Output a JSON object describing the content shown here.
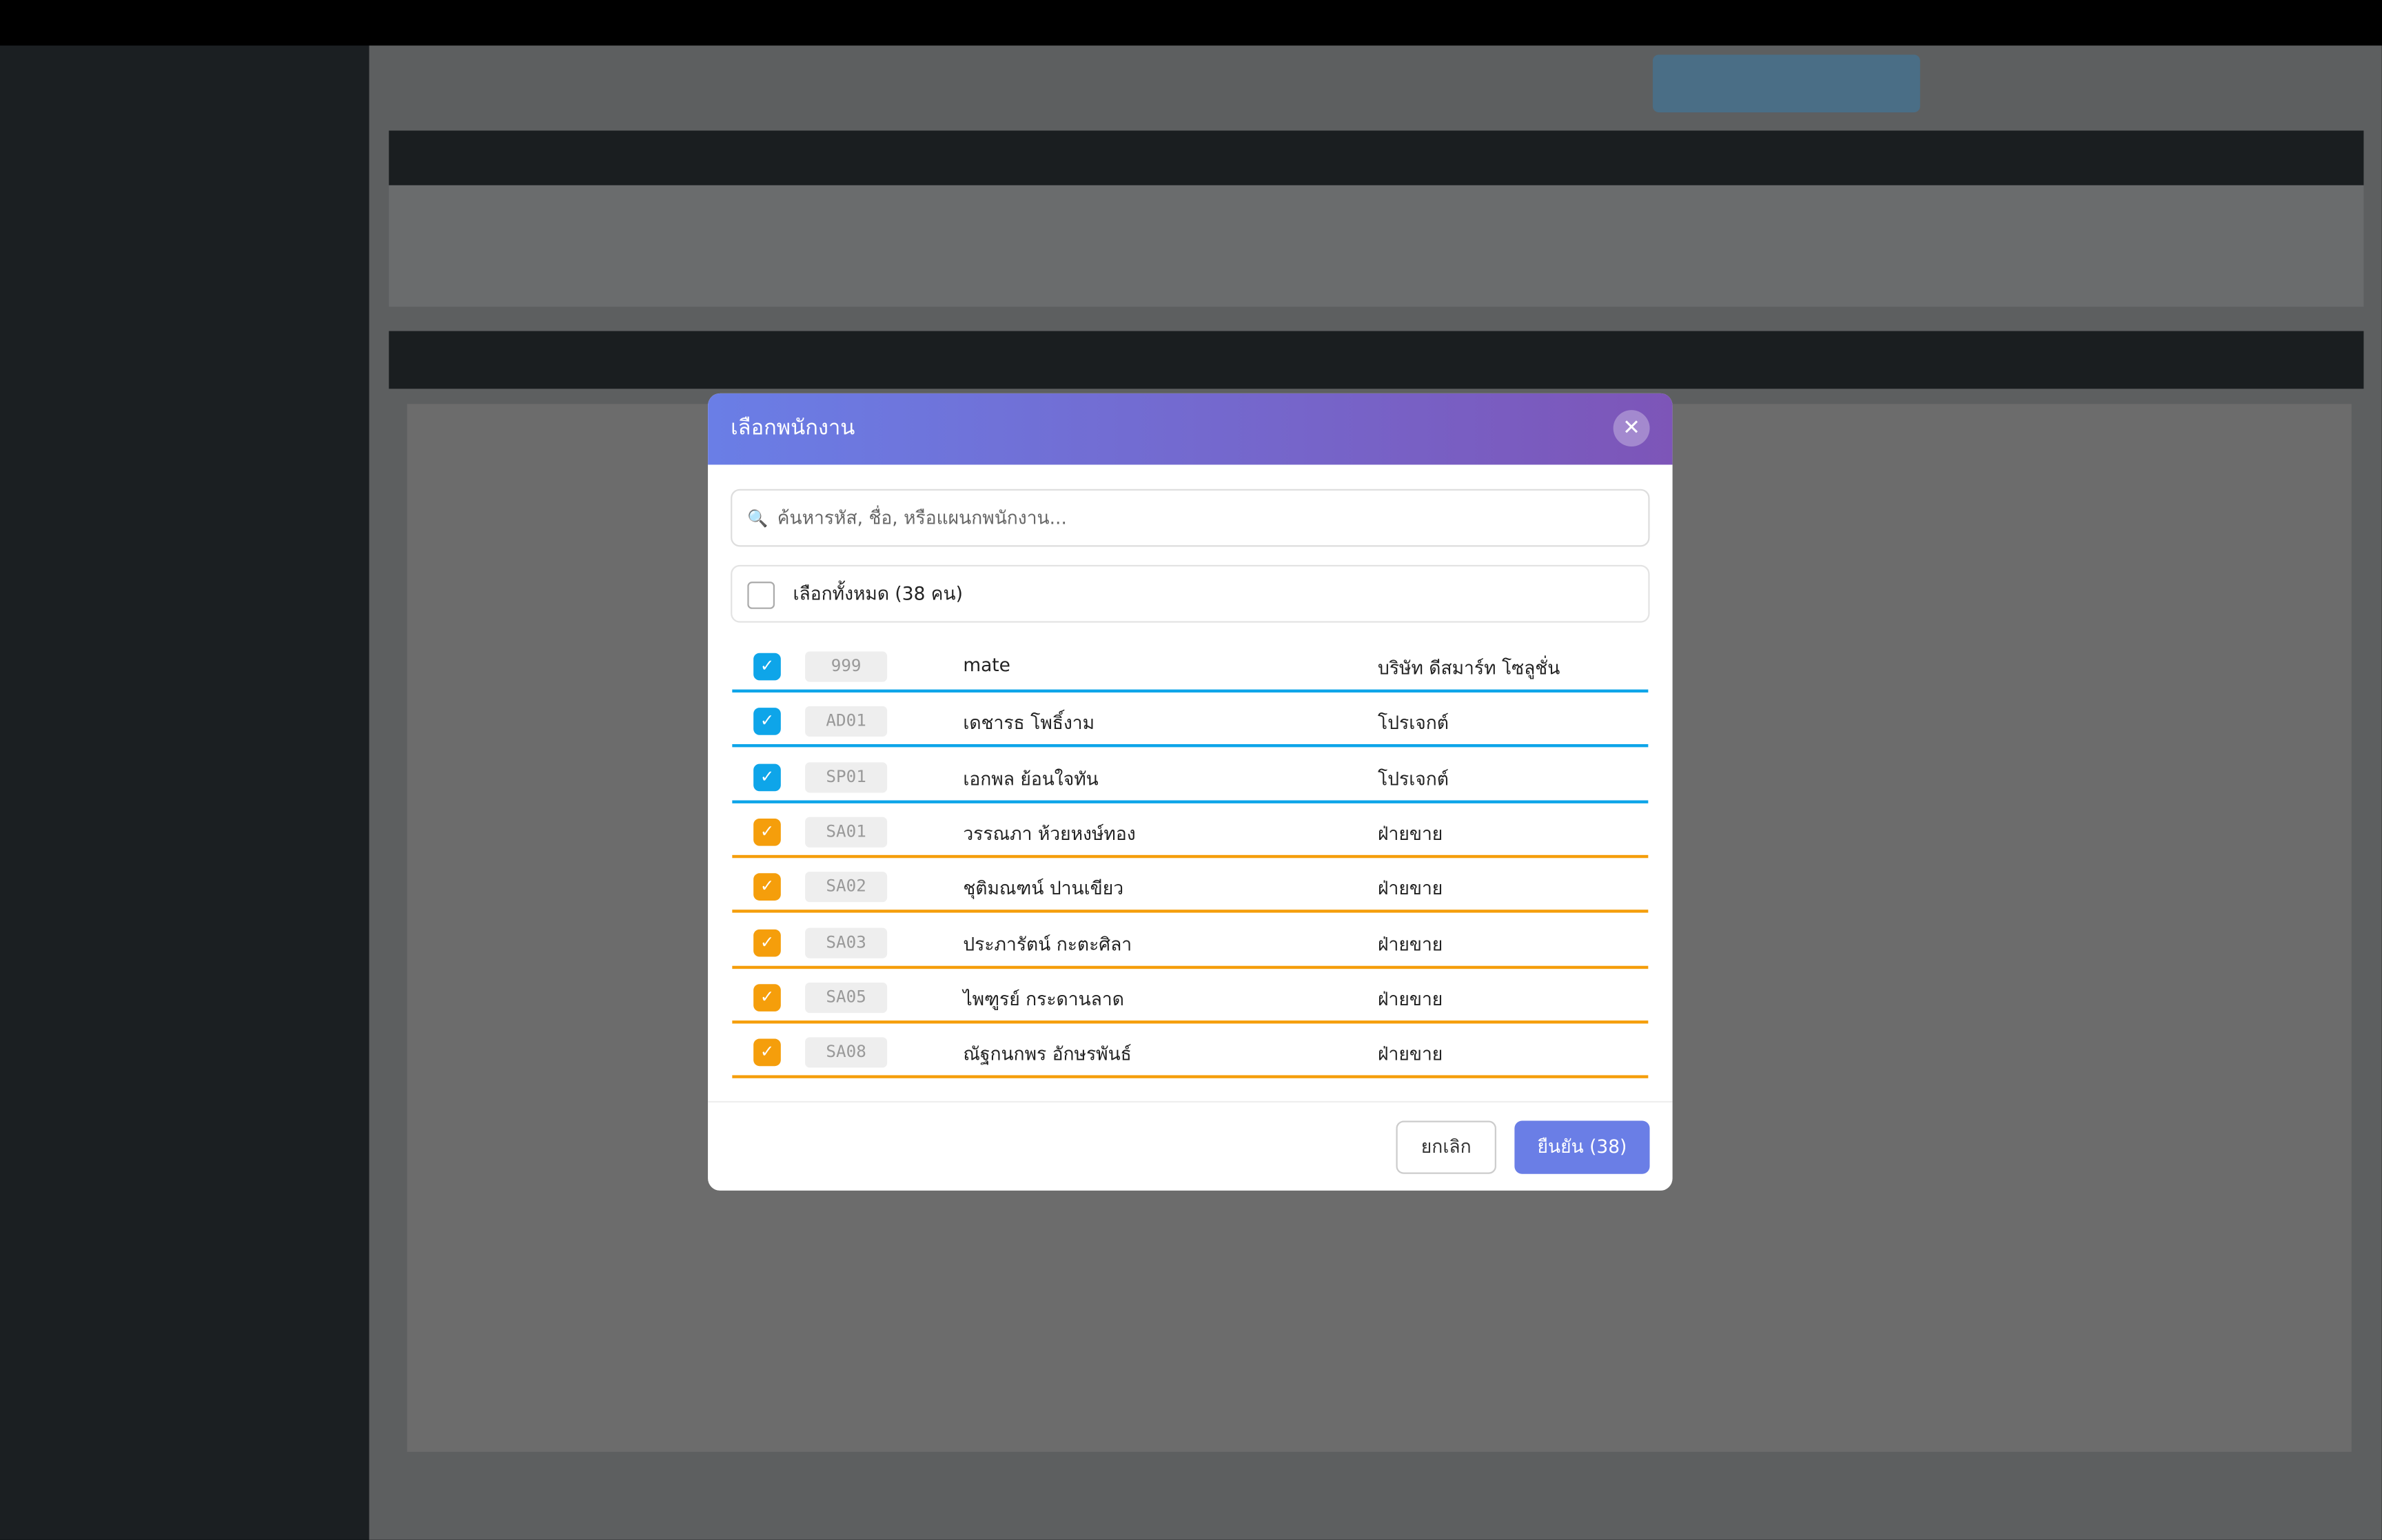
{
  "modal": {
    "title": "เลือกพนักงาน",
    "search_placeholder": "ค้นหารหัส, ชื่อ, หรือแผนกพนักงาน...",
    "select_all": "เลือกทั้งหมด (38 คน)",
    "employees": [
      {
        "code": "999",
        "name": "mate",
        "department": "บริษัท ดีสมาร์ท โซลูชั่น",
        "checked": true,
        "color": "#0ea5e9"
      },
      {
        "code": "AD01",
        "name": "เดชารธ โพธิ์งาม",
        "department": "โปรเจกต์",
        "checked": true,
        "color": "#0ea5e9"
      },
      {
        "code": "SP01",
        "name": "เอกพล ย้อนใจทัน",
        "department": "โปรเจกต์",
        "checked": true,
        "color": "#0ea5e9"
      },
      {
        "code": "SA01",
        "name": "วรรณภา ห้วยหงษ์ทอง",
        "department": "ฝ่ายขาย",
        "checked": true,
        "color": "#f59e0b"
      },
      {
        "code": "SA02",
        "name": "ชุติมณฑน์ ปานเขียว",
        "department": "ฝ่ายขาย",
        "checked": true,
        "color": "#f59e0b"
      },
      {
        "code": "SA03",
        "name": "ประภารัตน์ กะตะศิลา",
        "department": "ฝ่ายขาย",
        "checked": true,
        "color": "#f59e0b"
      },
      {
        "code": "SA05",
        "name": "ไพฑูรย์ กระดานลาด",
        "department": "ฝ่ายขาย",
        "checked": true,
        "color": "#f59e0b"
      },
      {
        "code": "SA08",
        "name": "ณัฐกนกพร อักษรพันธ์",
        "department": "ฝ่ายขาย",
        "checked": true,
        "color": "#f59e0b"
      }
    ],
    "cancel": "ยกเลิก",
    "confirm": "ยืนยัน (38)"
  }
}
